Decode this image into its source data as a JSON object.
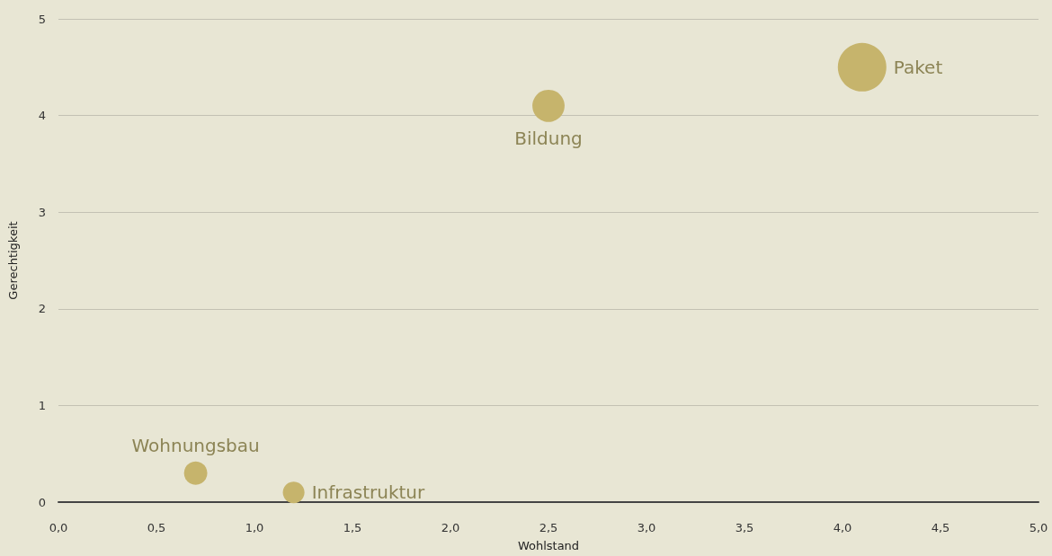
{
  "chart_data": {
    "type": "bubble",
    "xlabel": "Wohlstand",
    "ylabel": "Gerechtigkeit",
    "xlim": [
      0,
      5
    ],
    "xticks": [
      {
        "value": 0,
        "label": "0,0"
      },
      {
        "value": 0.5,
        "label": "0,5"
      },
      {
        "value": 1,
        "label": "1,0"
      },
      {
        "value": 1.5,
        "label": "1,5"
      },
      {
        "value": 2,
        "label": "2,0"
      },
      {
        "value": 2.5,
        "label": "2,5"
      },
      {
        "value": 3,
        "label": "3,0"
      },
      {
        "value": 3.5,
        "label": "3,5"
      },
      {
        "value": 4,
        "label": "4,0"
      },
      {
        "value": 4.5,
        "label": "4,5"
      },
      {
        "value": 5,
        "label": "5,0"
      }
    ],
    "ylim": [
      0,
      5
    ],
    "yticks": [
      0,
      1,
      2,
      3,
      4,
      5
    ],
    "grid": "y",
    "legend": false,
    "series": [
      {
        "name": "Wohnungsbau",
        "color": "#c6b46c",
        "x": [
          0.7
        ],
        "values": [
          0.3
        ],
        "sizes": [
          0.23
        ]
      },
      {
        "name": "Infrastruktur",
        "color": "#c6b46c",
        "x": [
          1.2
        ],
        "values": [
          0.1
        ],
        "sizes": [
          0.2
        ]
      },
      {
        "name": "Bildung",
        "color": "#c6b46c",
        "x": [
          2.5
        ],
        "values": [
          4.1
        ],
        "sizes": [
          0.44
        ]
      },
      {
        "name": "Paket",
        "color": "#c6b46c",
        "x": [
          4.1
        ],
        "values": [
          4.5
        ],
        "sizes": [
          1
        ]
      }
    ]
  }
}
